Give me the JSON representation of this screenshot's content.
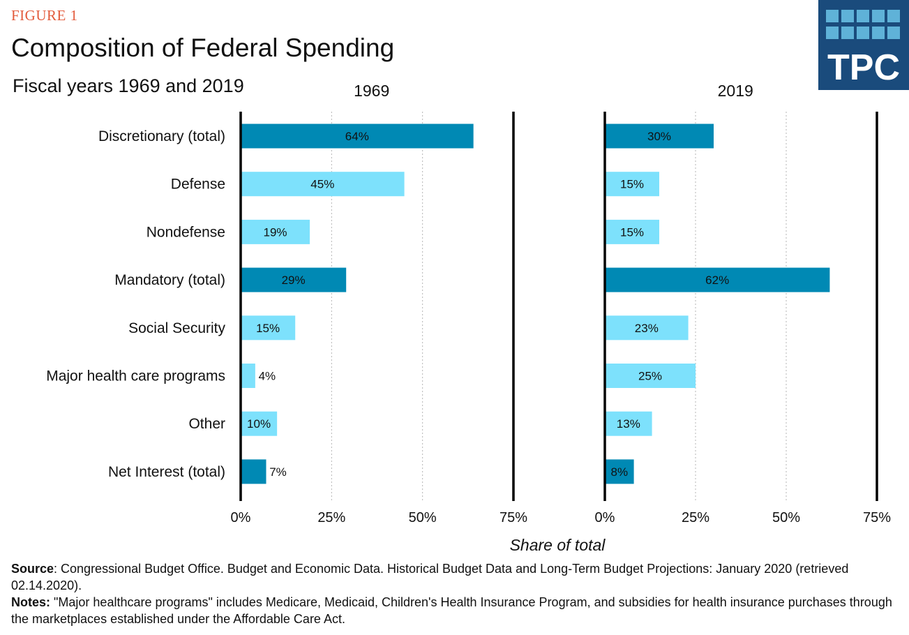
{
  "figure_label": "FIGURE 1",
  "title": "Composition of Federal Spending",
  "subtitle": "Fiscal years 1969 and 2019",
  "logo_text": "TPC",
  "colors": {
    "total_bar": "#0089B4",
    "sub_bar": "#7DE1FC",
    "figure_label": "#E35B3C",
    "logo_bg": "#1A4B7C",
    "logo_squares": "#5FB2D8"
  },
  "source_label": "Source",
  "source_text": ": Congressional Budget Office. Budget and Economic Data. Historical Budget Data and Long-Term Budget Projections: January 2020 (retrieved 02.14.2020).",
  "notes_label": "Notes:",
  "notes_text": " \"Major healthcare programs\" includes Medicare, Medicaid, Children's Health Insurance Program, and subsidies for health insurance purchases through the marketplaces established under the Affordable Care Act.",
  "chart_data": [
    {
      "type": "bar",
      "orientation": "horizontal",
      "title": "1969",
      "xlabel": "Share of total",
      "xlim": [
        0,
        75
      ],
      "xticks": [
        "0%",
        "25%",
        "50%",
        "75%"
      ],
      "categories": [
        "Discretionary (total)",
        "Defense",
        "Nondefense",
        "Mandatory (total)",
        "Social Security",
        "Major health care programs",
        "Other",
        "Net Interest (total)"
      ],
      "is_total": [
        true,
        false,
        false,
        true,
        false,
        false,
        false,
        true
      ],
      "values": [
        64,
        45,
        19,
        29,
        15,
        4,
        10,
        7
      ],
      "labels": [
        "64%",
        "45%",
        "19%",
        "29%",
        "15%",
        "4%",
        "10%",
        "7%"
      ],
      "grid": true
    },
    {
      "type": "bar",
      "orientation": "horizontal",
      "title": "2019",
      "xlabel": "Share of total",
      "xlim": [
        0,
        75
      ],
      "xticks": [
        "0%",
        "25%",
        "50%",
        "75%"
      ],
      "categories": [
        "Discretionary (total)",
        "Defense",
        "Nondefense",
        "Mandatory (total)",
        "Social Security",
        "Major health care programs",
        "Other",
        "Net Interest (total)"
      ],
      "is_total": [
        true,
        false,
        false,
        true,
        false,
        false,
        false,
        true
      ],
      "values": [
        30,
        15,
        15,
        62,
        23,
        25,
        13,
        8
      ],
      "labels": [
        "30%",
        "15%",
        "15%",
        "62%",
        "23%",
        "25%",
        "13%",
        "8%"
      ],
      "grid": true
    }
  ]
}
